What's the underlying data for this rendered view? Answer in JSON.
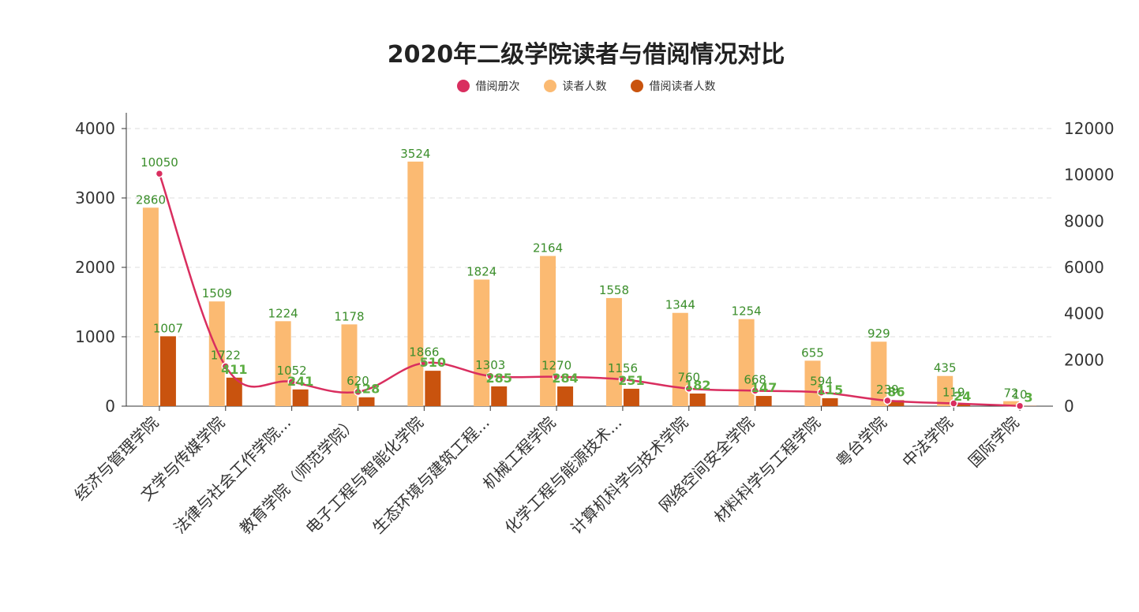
{
  "chart_data": {
    "type": "bar",
    "title": "2020年二级学院读者与借阅情况对比",
    "categories": [
      "经济与管理学院",
      "文学与传媒学院",
      "法律与社会工作学院...",
      "教育学院（师范学院）",
      "电子工程与智能化学院",
      "生态环境与建筑工程...",
      "机械工程学院",
      "化学工程与能源技术...",
      "计算机科学与技术学院",
      "网络空间安全学院",
      "材料科学与工程学院",
      "粤台学院",
      "中法学院",
      "国际学院"
    ],
    "series": [
      {
        "name": "借阅册次",
        "type": "line",
        "axis": "right",
        "values": [
          10050,
          1722,
          1052,
          620,
          1866,
          1303,
          1270,
          1156,
          760,
          668,
          594,
          239,
          119,
          10
        ]
      },
      {
        "name": "读者人数",
        "type": "bar",
        "axis": "left",
        "values": [
          2860,
          1509,
          1224,
          1178,
          3524,
          1824,
          2164,
          1558,
          1344,
          1254,
          655,
          929,
          435,
          72
        ]
      },
      {
        "name": "借阅读者人数",
        "type": "bar",
        "axis": "left",
        "values": [
          1007,
          411,
          241,
          128,
          510,
          285,
          284,
          251,
          182,
          147,
          115,
          86,
          24,
          3
        ]
      }
    ],
    "colors": {
      "借阅册次": "#d92e5f",
      "读者人数": "#fbba72",
      "借阅读者人数": "#c9530e"
    },
    "y_left": {
      "min": 0,
      "max": 4000,
      "ticks": [
        "0",
        "1000",
        "2000",
        "3000",
        "4000"
      ]
    },
    "y_right": {
      "min": 0,
      "max": 12000,
      "ticks": [
        "0",
        "2000",
        "4000",
        "6000",
        "8000",
        "10000",
        "12000"
      ]
    },
    "legend_position": "top-center",
    "grid": true
  }
}
